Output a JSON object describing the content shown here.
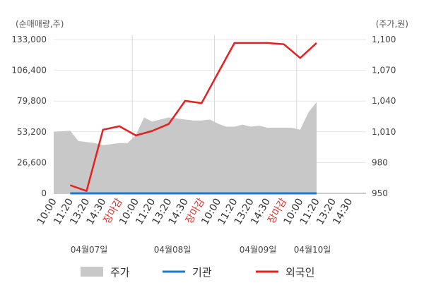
{
  "chart_data": {
    "type": "line",
    "left_axis": {
      "label": "(순매매량,주)",
      "ticks": [
        "133,000",
        "106,400",
        "79,800",
        "53,200",
        "26,600",
        "0"
      ],
      "range": [
        0,
        133000
      ]
    },
    "right_axis": {
      "label": "(주가,원)",
      "ticks": [
        "1,100",
        "1,070",
        "1,040",
        "1,010",
        "980",
        "950"
      ],
      "range": [
        950,
        1100
      ]
    },
    "x_labels": [
      "10:00",
      "11:20",
      "13:20",
      "14:30",
      "장마감",
      "10:00",
      "11:20",
      "13:20",
      "14:30",
      "장마감",
      "10:00",
      "11:20",
      "13:20",
      "14:30",
      "장마감",
      "10:00",
      "11:20",
      "13:20",
      "14:30"
    ],
    "closing_label": "장마감",
    "dates": [
      "04월07일",
      "04월08일",
      "04월09일",
      "04월10일"
    ],
    "legend": [
      {
        "name": "주가",
        "color": "#c8c8c8",
        "shape": "box"
      },
      {
        "name": "기관",
        "color": "#1f7bc8",
        "shape": "line"
      },
      {
        "name": "외국인",
        "color": "#e52020",
        "shape": "line"
      }
    ],
    "series": [
      {
        "name": "외국인",
        "axis": "left",
        "x": [
          1,
          2,
          3,
          4,
          5,
          6,
          7,
          8,
          9,
          10,
          11,
          12,
          13,
          14,
          15,
          16
        ],
        "values": [
          7000,
          2000,
          55000,
          58000,
          50000,
          54000,
          60000,
          80000,
          78000,
          104000,
          130000,
          130000,
          130000,
          129000,
          117000,
          130000
        ]
      },
      {
        "name": "기관",
        "axis": "left",
        "x": [
          1,
          16
        ],
        "values": [
          0,
          0
        ]
      },
      {
        "name": "주가",
        "axis": "right",
        "x": [
          0,
          1,
          1.5,
          2,
          2.5,
          3,
          3.5,
          4,
          4.5,
          5,
          5.5,
          6,
          6.5,
          7,
          7.5,
          8,
          8.5,
          9,
          9.5,
          10,
          10.5,
          11,
          11.5,
          12,
          12.5,
          13,
          13.5,
          14,
          14.5,
          15,
          15.5,
          16
        ],
        "values": [
          1010,
          1011,
          1001,
          1000,
          999,
          997,
          998,
          999,
          999,
          1007,
          1024,
          1020,
          1022,
          1024,
          1023,
          1022,
          1021,
          1021,
          1022,
          1018,
          1015,
          1015,
          1017,
          1015,
          1016,
          1014,
          1014,
          1014,
          1014,
          1012,
          1029,
          1039
        ]
      }
    ]
  }
}
